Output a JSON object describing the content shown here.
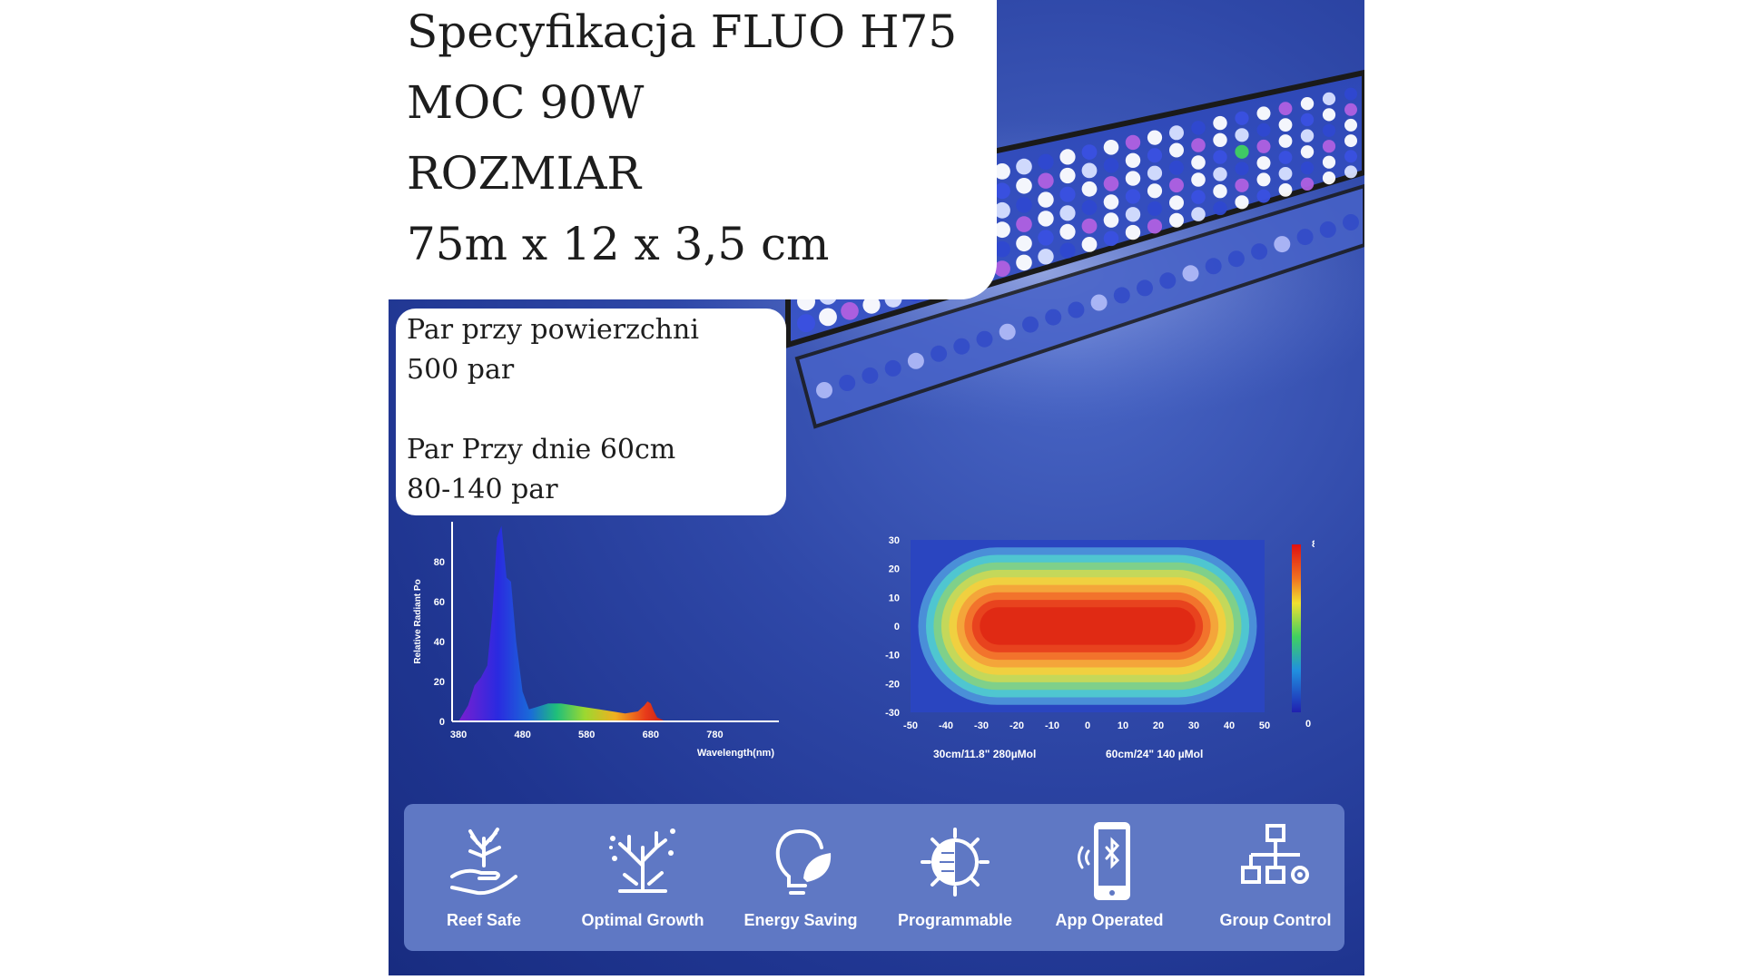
{
  "title_box": {
    "line1": "Specyfikacja FLUO H75",
    "line2": "MOC 90W",
    "line3": "ROZMIAR",
    "line4": "75m x 12 x 3,5 cm"
  },
  "par_box": {
    "line1": "Par przy powierzchni",
    "line2": " 500 par",
    "line3": "Par Przy dnie 60cm",
    "line4": "80-140 par"
  },
  "chart_data": [
    {
      "type": "area",
      "title": "",
      "xlabel": "Wavelength(nm)",
      "ylabel": "Relative Radiant Po",
      "x_ticks": [
        380,
        480,
        580,
        680,
        780
      ],
      "y_ticks": [
        0,
        20,
        40,
        60,
        80
      ],
      "xlim": [
        370,
        880
      ],
      "ylim": [
        0,
        100
      ],
      "series": [
        {
          "x": [
            380,
            395,
            405,
            415,
            425,
            433,
            440,
            447,
            455,
            462,
            470,
            480,
            490,
            500,
            520,
            540,
            560,
            580,
            600,
            620,
            640,
            660,
            670,
            675,
            680,
            685,
            690,
            700,
            720
          ],
          "values": [
            0,
            8,
            18,
            22,
            28,
            55,
            92,
            98,
            72,
            70,
            40,
            15,
            6,
            7,
            9,
            9,
            8,
            7,
            6,
            5,
            4,
            5,
            8,
            10,
            9,
            5,
            2,
            0.5,
            0
          ]
        }
      ]
    },
    {
      "type": "heatmap",
      "x_ticks": [
        -50,
        -40,
        -30,
        -20,
        -10,
        0,
        10,
        20,
        30,
        40,
        50
      ],
      "y_ticks": [
        30,
        20,
        10,
        0,
        -10,
        -20,
        -30
      ],
      "colorbar_range": [
        0,
        800
      ],
      "colorbar_labels": [
        "800",
        "0"
      ],
      "annotations": [
        "30cm/11.8\"  280µMol",
        "60cm/24\"  140 µMol"
      ],
      "contour_colors": [
        "#2a45c0",
        "#4a8fd8",
        "#4fc6d0",
        "#7fd08a",
        "#c4d85a",
        "#f0d040",
        "#f4a53a",
        "#f2732c",
        "#e8431e",
        "#e02a14"
      ]
    }
  ],
  "features": [
    {
      "label": "Reef Safe",
      "icon": "reef-hand-icon"
    },
    {
      "label": "Optimal Growth",
      "icon": "coral-growth-icon"
    },
    {
      "label": "Energy Saving",
      "icon": "bulb-leaf-icon"
    },
    {
      "label": "Programmable",
      "icon": "sun-dial-icon"
    },
    {
      "label": "App Operated",
      "icon": "phone-bluetooth-icon"
    },
    {
      "label": "Group Control",
      "icon": "network-gear-icon"
    }
  ],
  "colors": {
    "background": "#243a98",
    "feature_bar": "#5f78c4",
    "callout": "#ffffff",
    "text_dark": "#1d1d1d"
  }
}
